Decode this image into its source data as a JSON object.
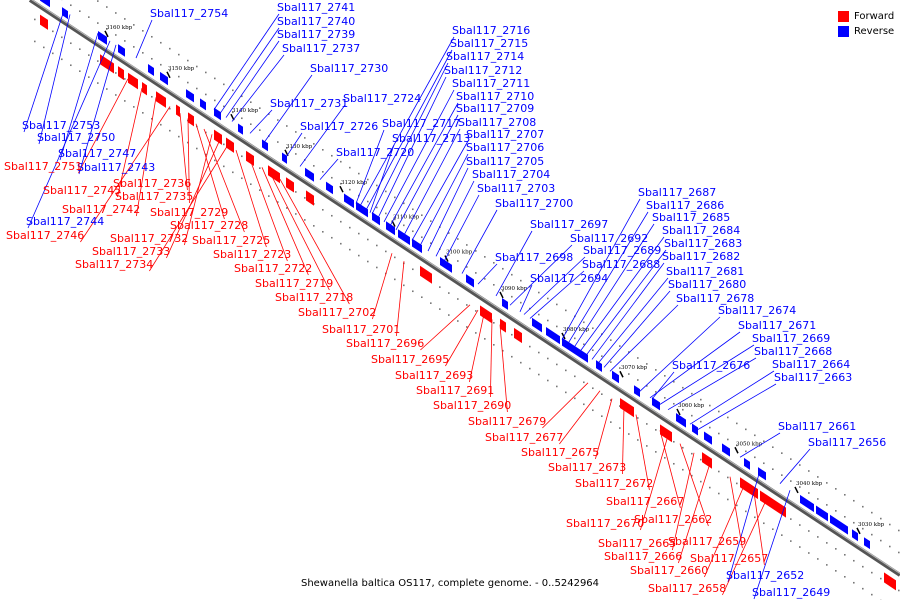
{
  "caption": "Shewanella baltica OS117, complete genome. - 0..5242964",
  "legend": [
    {
      "label": "Forward",
      "color": "#ff0000"
    },
    {
      "label": "Reverse",
      "color": "#0000ff"
    }
  ],
  "colors": {
    "forward": "#ff0000",
    "reverse": "#0000ff",
    "backbone": "#555555"
  },
  "ticks": [
    "3160 kbp",
    "3150 kbp",
    "3140 kbp",
    "3130 kbp",
    "3120 kbp",
    "3110 kbp",
    "3100 kbp",
    "3090 kbp",
    "3080 kbp",
    "3070 kbp",
    "3060 kbp",
    "3050 kbp",
    "3040 kbp",
    "3030 kbp"
  ],
  "reverse_labels": [
    "Sbal117_2754",
    "Sbal117_2741",
    "Sbal117_2740",
    "Sbal117_2739",
    "Sbal117_2737",
    "Sbal117_2730",
    "Sbal117_2731",
    "Sbal117_2724",
    "Sbal117_2726",
    "Sbal117_2717",
    "Sbal117_2713",
    "Sbal117_2720",
    "Sbal117_2753",
    "Sbal117_2750",
    "Sbal117_2747",
    "Sbal117_2743",
    "Sbal117_2744",
    "Sbal117_2716",
    "Sbal117_2715",
    "Sbal117_2714",
    "Sbal117_2712",
    "Sbal117_2711",
    "Sbal117_2710",
    "Sbal117_2709",
    "Sbal117_2708",
    "Sbal117_2707",
    "Sbal117_2706",
    "Sbal117_2705",
    "Sbal117_2704",
    "Sbal117_2703",
    "Sbal117_2700",
    "Sbal117_2697",
    "Sbal117_2692",
    "Sbal117_2698",
    "Sbal117_2689",
    "Sbal117_2688",
    "Sbal117_2694",
    "Sbal117_2687",
    "Sbal117_2686",
    "Sbal117_2685",
    "Sbal117_2684",
    "Sbal117_2683",
    "Sbal117_2682",
    "Sbal117_2681",
    "Sbal117_2680",
    "Sbal117_2678",
    "Sbal117_2674",
    "Sbal117_2671",
    "Sbal117_2669",
    "Sbal117_2668",
    "Sbal117_2676",
    "Sbal117_2664",
    "Sbal117_2663",
    "Sbal117_2661",
    "Sbal117_2656",
    "Sbal117_2652",
    "Sbal117_2649"
  ],
  "forward_labels": [
    "Sbal117_2751",
    "Sbal117_2745",
    "Sbal117_2742",
    "Sbal117_2746",
    "Sbal117_2736",
    "Sbal117_2735",
    "Sbal117_2729",
    "Sbal117_2728",
    "Sbal117_2732",
    "Sbal117_2733",
    "Sbal117_2734",
    "Sbal117_2725",
    "Sbal117_2723",
    "Sbal117_2722",
    "Sbal117_2719",
    "Sbal117_2718",
    "Sbal117_2702",
    "Sbal117_2701",
    "Sbal117_2696",
    "Sbal117_2695",
    "Sbal117_2693",
    "Sbal117_2691",
    "Sbal117_2690",
    "Sbal117_2679",
    "Sbal117_2677",
    "Sbal117_2675",
    "Sbal117_2673",
    "Sbal117_2672",
    "Sbal117_2667",
    "Sbal117_2670",
    "Sbal117_2662",
    "Sbal117_2665",
    "Sbal117_2666",
    "Sbal117_2659",
    "Sbal117_2660",
    "Sbal117_2657",
    "Sbal117_2658"
  ]
}
